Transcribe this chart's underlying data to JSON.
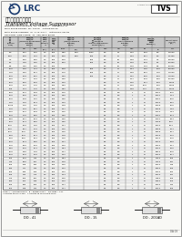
{
  "title_cn": "瞬态电压抑制二极管",
  "title_en": "Transient Voltage Suppressor",
  "company": "LANSHAN SEMICONDUCTORS CO., LTD",
  "logo_text": "LRC",
  "part_number_box": "TVS",
  "spec_lines": [
    [
      "WORKING PEAK REVERSE",
      "VR:",
      "50~220 V",
      "Outline:DO-41"
    ],
    [
      "PEAK PULSE POWER:",
      "PP:",
      "600 W",
      "Outline:DO-15"
    ],
    [
      "PEAK PULSE CURRENT:",
      "IP:",
      "2.73~5.5 A",
      "Outline:DO-201AD"
    ],
    [
      "RECOVERY TIME SURGE:",
      "IR:",
      "See Table Below",
      ""
    ]
  ],
  "col_headers_top": [
    "器件型号\n(Device\nType)",
    "标称击穿\n电压(Nominal\nBreakdown\nVoltage)\nVBR(V)",
    "测试电流\n(Test\nCurrent)\nIT",
    "最大反向漏\n电流(Max\nReverse\nLeakage\nCurrent)\nIR",
    "最大钳位电压\n(Max Clamping\nVoltage)\nVC",
    "最小/最大击穿电流\n(Min/Max Impulse\nBreakdown Current)\nIP(A)",
    "最大钳位电压\n(Max Clamping\nVoltage)\nVC",
    "最大直流反向\n工作电压(Max DC\nReverse Stand-off\nVoltage)\nVRWM(V)",
    "Capacitance\n(Typ. Ct)\n(pF)"
  ],
  "col_headers_sub": [
    "Min",
    "Max",
    "(mA)",
    "(μA)",
    "8x24μs",
    "Min",
    "Max",
    "Min",
    "Max",
    "VR"
  ],
  "row_groups": [
    {
      "label": "5.0~8.5V",
      "rows": [
        [
          "5.0",
          "5.22",
          "6.00",
          "3.0",
          "500",
          "9.55",
          "5.00",
          "1000",
          "5.0",
          "34",
          "1.30",
          "13.9",
          "5.0",
          "14.500"
        ],
        [
          "6.0V",
          "5.70",
          "7.14",
          "3.0",
          "500",
          "8.00",
          "5.00",
          "400",
          "5.0",
          "27",
          "1.39",
          "13.7",
          "6.0",
          "14.100"
        ],
        [
          "7.5",
          "6.75",
          "8.25",
          "3.0",
          "500",
          "6.40",
          "",
          "500",
          "5.0",
          "54",
          "1.28",
          "14.1",
          "7.5",
          "13.000"
        ],
        [
          "8.2",
          "7.38",
          "9.02",
          "3.0",
          "500",
          "5.90",
          "",
          "500",
          "5.0",
          "54",
          "1.09",
          "15.8",
          "8.2",
          "12.900"
        ],
        [
          "8.5",
          "7.65",
          "9.35",
          "1.0",
          "500",
          "",
          "",
          "",
          "5.0",
          "51",
          "1.09",
          "14.3",
          "8.5",
          "12.900"
        ]
      ]
    },
    {
      "label": "10.0~16V",
      "rows": [
        [
          "10.0",
          "9.00",
          "11.1",
          "1.0",
          "500",
          "5.08",
          "",
          "500",
          "5.0",
          "11",
          "1.41",
          "14.5",
          "10.0",
          "12.600"
        ],
        [
          "11.0",
          "9.90",
          "12.1",
          "1.0",
          "500",
          "4.75",
          "",
          "500",
          "5.0",
          "11",
          "1.28",
          "18.2",
          "11.0",
          "11.500"
        ],
        [
          "12.0",
          "10.8",
          "13.2",
          "1.0",
          "500",
          "4.60",
          "",
          "500",
          "5.0",
          "11",
          "1.22",
          "18.0",
          "12.0",
          "11.000"
        ],
        [
          "13.0",
          "11.7",
          "14.3",
          "1.0",
          "500",
          "4.50",
          "",
          "",
          "5.0",
          "11",
          "1.17",
          "16.9",
          "13.0",
          "10.300"
        ],
        [
          "15.0",
          "13.5",
          "16.5",
          "1.0",
          "500",
          "3.90",
          "",
          "",
          "5.0",
          "11",
          "1.06",
          "19.7",
          "15.0",
          "9.700"
        ],
        [
          "16.0",
          "14.4",
          "17.6",
          "1.0",
          "500",
          "3.60",
          "",
          "",
          "5.0",
          "11",
          "1.00",
          "20.9",
          "16.0",
          "9.200"
        ],
        [
          "16a",
          "14.4",
          "17.6",
          "1.0",
          "500",
          "3.52",
          "",
          "",
          "5.0",
          "11",
          "0.98",
          "21.2",
          "16.0",
          "9.100"
        ]
      ]
    },
    {
      "label": "18~30V",
      "rows": [
        [
          "18.0",
          "16.2",
          "19.8",
          "1.0",
          "500",
          "3.05",
          "",
          "",
          "5.5",
          "5.0",
          "1",
          "47",
          "950.4",
          "22.5"
        ],
        [
          "20.0",
          "18.0",
          "22.0",
          "1.0",
          "500",
          "2.80",
          "",
          "",
          "5.5",
          "5.0",
          "1",
          "47",
          "950.4",
          "24.4"
        ],
        [
          "22.0",
          "19.8",
          "24.2",
          "1.0",
          "500",
          "2.55",
          "",
          "",
          "5.5",
          "5.0",
          "1",
          "47",
          "875.4",
          "26.6"
        ],
        [
          "24.0",
          "21.6",
          "26.4",
          "1.0",
          "500",
          "2.30",
          "",
          "",
          "5.5",
          "5.0",
          "1",
          "47",
          "800.0",
          "29.2"
        ],
        [
          "25.0a",
          "21.5",
          "27.5",
          "1.0",
          "500",
          "2.28",
          "",
          "",
          "5.5",
          "5.0",
          "1",
          "47",
          "966.8",
          "30.6"
        ],
        [
          "27.0",
          "24.3",
          "29.7",
          "1.0",
          "500",
          "2.07",
          "",
          "",
          "5.5",
          "5.0",
          "1",
          "47",
          "766.8",
          "31.3"
        ],
        [
          "28.0",
          "25.2",
          "30.8",
          "1.0",
          "500",
          "1.95",
          "",
          "",
          "5.5",
          "5.0",
          "1",
          "47",
          "724.0",
          "34.4"
        ],
        [
          "30.0",
          "27.0",
          "33.0",
          "1.0",
          "500",
          "1.80",
          "",
          "",
          "5.5",
          "5.0",
          "1",
          "47",
          "675.4",
          "36.4"
        ]
      ]
    },
    {
      "label": "33~75V",
      "rows": [
        [
          "33.0",
          "29.7",
          "36.3",
          "1.0",
          "500",
          "1.62",
          "",
          "",
          "5.5",
          "5.0",
          "1",
          "47",
          "675.4",
          "39.4"
        ],
        [
          "36.0",
          "32.4",
          "39.6",
          "1.0",
          "500",
          "1.50",
          "",
          "",
          "5.5",
          "5.0",
          "1",
          "47",
          "606.8",
          "43.6"
        ],
        [
          "40.0",
          "36.0",
          "44.0",
          "1.0",
          "500",
          "1.37",
          "",
          "",
          "5.5",
          "5.0",
          "1",
          "47",
          "564.0",
          "48.4"
        ],
        [
          "43.0",
          "38.7",
          "47.3",
          "1.0",
          "500",
          "1.25",
          "",
          "",
          "5.5",
          "5.0",
          "1",
          "47",
          "516.8",
          "53.1"
        ],
        [
          "45.0",
          "40.5",
          "49.5",
          "1.0",
          "500",
          "1.20",
          "",
          "",
          "5.5",
          "5.0",
          "1",
          "47",
          "516.8",
          "54.7"
        ],
        [
          "51.0",
          "45.9",
          "56.1",
          "1.0",
          "500",
          "1.08",
          "",
          "",
          "5.5",
          "5.0",
          "1",
          "47",
          "452.6",
          "62.2"
        ],
        [
          "54.0",
          "48.6",
          "59.4",
          "1.0",
          "500",
          "1.00",
          "",
          "",
          "5.5",
          "5.0",
          "1",
          "47",
          "424.0",
          "66.0"
        ],
        [
          "56.0",
          "50.4",
          "61.6",
          "1.0",
          "500",
          "0.97",
          "",
          "",
          "5.5",
          "5.0",
          "1",
          "47",
          "424.0",
          "68.8"
        ],
        [
          "60.0",
          "54.0",
          "66.0",
          "1.0",
          "500",
          "0.90",
          "",
          "",
          "5.5",
          "5.0",
          "1",
          "47",
          "400.0",
          "73.7"
        ],
        [
          "64.0",
          "57.6",
          "70.4",
          "1.0",
          "500",
          "0.84",
          "",
          "",
          "5.5",
          "5.0",
          "1",
          "47",
          "360.0",
          "79.0"
        ],
        [
          "70.0",
          "63.0",
          "77.0",
          "1.0",
          "500",
          "0.77",
          "",
          "",
          "5.5",
          "5.0",
          "1",
          "47",
          "334.0",
          "86.5"
        ],
        [
          "75.0",
          "67.5",
          "82.5",
          "1.0",
          "500",
          "0.72",
          "",
          "",
          "5.5",
          "5.0",
          "1",
          "47",
          "320.0",
          "92.7"
        ]
      ]
    },
    {
      "label": "100~220V",
      "rows": [
        [
          "100",
          "90.0",
          "110",
          "1.0",
          "500",
          "0.54",
          "",
          "",
          "5.5",
          "5.0",
          "1",
          "47",
          "240.0",
          "123"
        ],
        [
          "110",
          "99.0",
          "121",
          "1.0",
          "500",
          "0.49",
          "",
          "",
          "5.5",
          "5.0",
          "1",
          "47",
          "214.0",
          "137"
        ],
        [
          "120",
          "108",
          "132",
          "1.0",
          "500",
          "0.45",
          "",
          "",
          "5.5",
          "5.0",
          "1",
          "47",
          "200.0",
          "149"
        ],
        [
          "130",
          "117",
          "143",
          "1.0",
          "500",
          "0.42",
          "",
          "",
          "5.5",
          "5.0",
          "1",
          "47",
          "186.0",
          "160"
        ],
        [
          "150",
          "135",
          "165",
          "1.0",
          "500",
          "0.36",
          "",
          "",
          "5.5",
          "5.0",
          "1",
          "47",
          "160.0",
          "184"
        ],
        [
          "160",
          "144",
          "176",
          "1.0",
          "500",
          "0.34",
          "",
          "",
          "5.5",
          "5.0",
          "1",
          "47",
          "152.0",
          "197"
        ],
        [
          "170",
          "153",
          "187",
          "1.0",
          "500",
          "0.32",
          "",
          "",
          "5.5",
          "5.0",
          "1",
          "47",
          "148.0",
          "209"
        ],
        [
          "180",
          "162",
          "198",
          "1.0",
          "500",
          "0.30",
          "",
          "",
          "5.5",
          "5.0",
          "1",
          "47",
          "138.0",
          "220"
        ],
        [
          "200",
          "180",
          "220",
          "1.0",
          "500",
          "0.27",
          "",
          "",
          "5.5",
          "5.0",
          "1",
          "47",
          "120.0",
          "244"
        ],
        [
          "220",
          "198",
          "242",
          "1.0",
          "500",
          "0.27",
          "",
          "",
          "5.5",
          "5.0",
          "1",
          "47",
          "120.0",
          "269"
        ]
      ]
    }
  ],
  "notes": [
    "NOTE: A = UNIDIRECTIONAL   B = BIDIRECTIONAL   Typ Surge = 0.1s   * Indicates tolerance ±5%   A indicates Tp Tolerance at 150%"
  ],
  "pkg_labels": [
    "DO - 41",
    "DO - 15",
    "DO - 201AD"
  ],
  "page_num": "DA 08",
  "bg_color": "#f8f8f5",
  "header_bg": "#c8c8c8",
  "alt_row_bg": "#ebebeb",
  "group_sep_color": "#999999",
  "border_color": "#666666",
  "line_color": "#aaaaaa",
  "text_color": "#111111",
  "logo_blue": "#1a3a6e"
}
